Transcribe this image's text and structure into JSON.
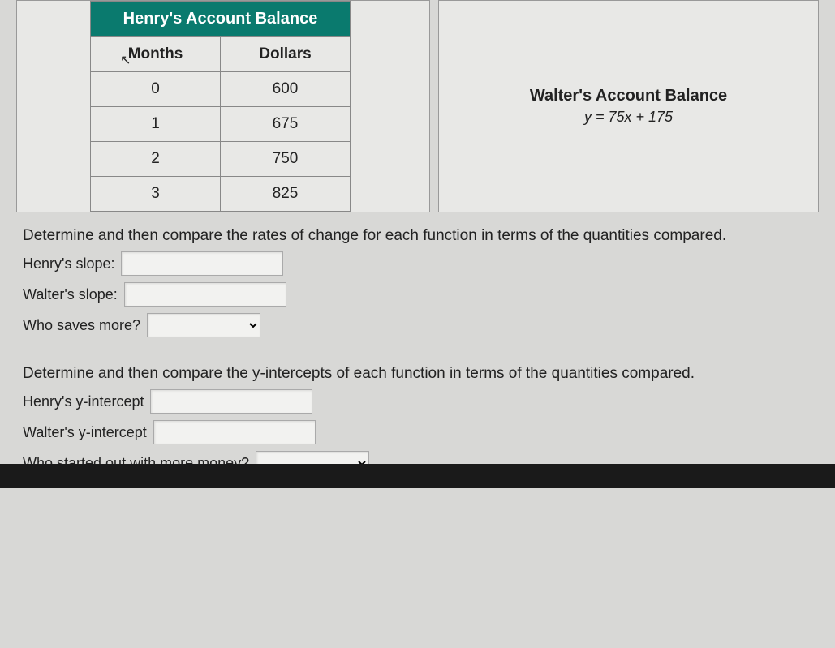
{
  "henry_table": {
    "title": "Henry's Account Balance",
    "columns": [
      "Months",
      "Dollars"
    ],
    "rows": [
      [
        "0",
        "600"
      ],
      [
        "1",
        "675"
      ],
      [
        "2",
        "750"
      ],
      [
        "3",
        "825"
      ]
    ],
    "title_bg": "#0a7a6e",
    "title_color": "#ffffff",
    "border_color": "#888888",
    "cell_bg": "#e8e8e6",
    "cell_color": "#222222"
  },
  "walter_box": {
    "title": "Walter's Account Balance",
    "equation": "y = 75x + 175"
  },
  "prompt1": "Determine and then compare the rates of change for each function in terms of the quantities compared.",
  "labels": {
    "henry_slope": "Henry's slope:",
    "walter_slope": "Walter's slope:",
    "who_saves": "Who saves more?"
  },
  "prompt2": "Determine and then compare the y-intercepts of each function in terms of the quantities compared.",
  "labels2": {
    "henry_yint": "Henry's y-intercept",
    "walter_yint": "Walter's y-intercept",
    "who_started": "Who started out with more money?"
  },
  "inputs": {
    "henry_slope": "",
    "walter_slope": "",
    "who_saves": "",
    "henry_yint": "",
    "walter_yint": "",
    "who_started": ""
  },
  "colors": {
    "page_bg": "#d8d8d6",
    "panel_bg": "#e8e8e6"
  }
}
